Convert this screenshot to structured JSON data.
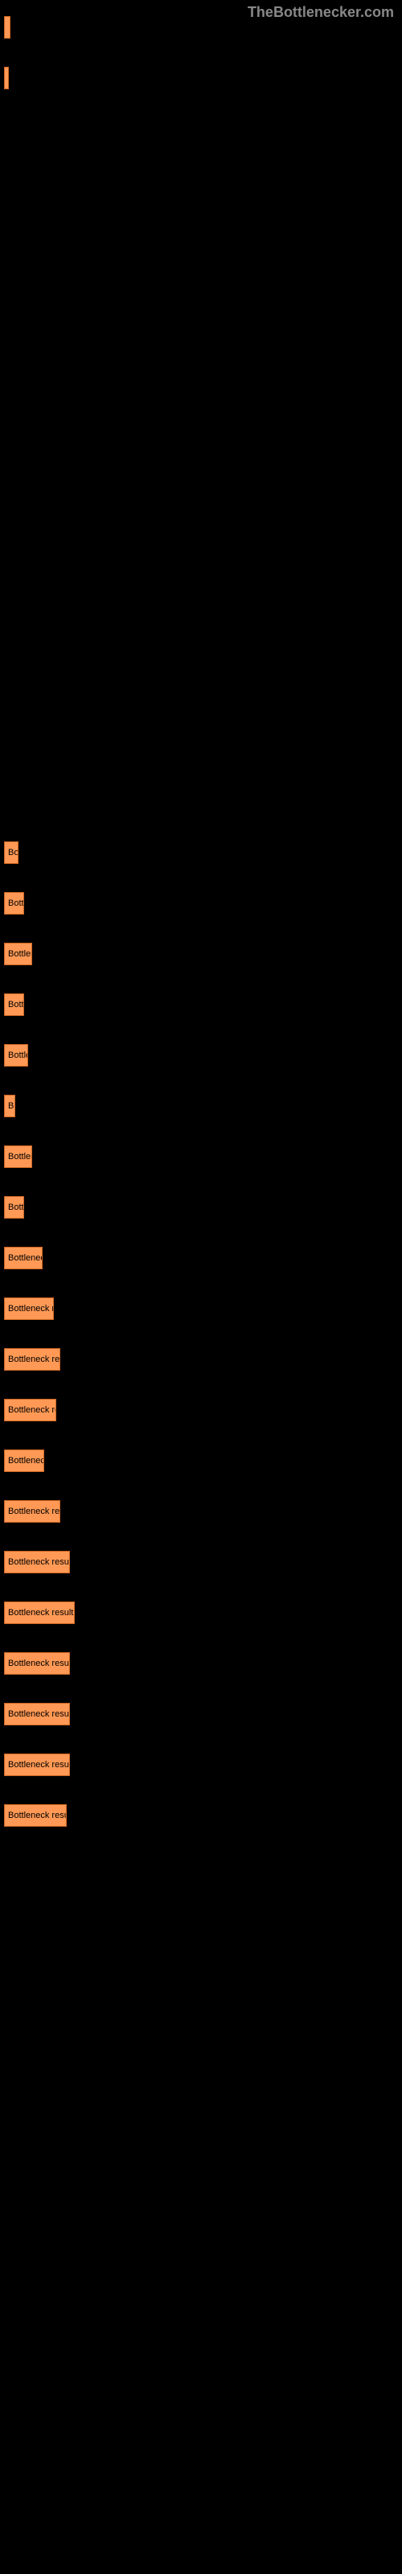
{
  "watermark": "TheBottlenecker.com",
  "chart": {
    "type": "bar",
    "background_color": "#000000",
    "bar_color": "#ff9955",
    "bar_border_color": "#cc6622",
    "text_color": "#000000",
    "font_size": 11,
    "bars": [
      {
        "width": 8,
        "label": ""
      },
      {
        "width": 4,
        "label": ""
      }
    ],
    "spacer_after_top": true,
    "main_bars": [
      {
        "width": 18,
        "label": "Bo"
      },
      {
        "width": 25,
        "label": "Bott"
      },
      {
        "width": 35,
        "label": "Bottlene"
      },
      {
        "width": 25,
        "label": "Bott"
      },
      {
        "width": 30,
        "label": "Bottle"
      },
      {
        "width": 14,
        "label": "B"
      },
      {
        "width": 35,
        "label": "Bottlene"
      },
      {
        "width": 25,
        "label": "Bottl"
      },
      {
        "width": 48,
        "label": "Bottleneck r"
      },
      {
        "width": 62,
        "label": "Bottleneck re"
      },
      {
        "width": 70,
        "label": "Bottleneck resu"
      },
      {
        "width": 65,
        "label": "Bottleneck res"
      },
      {
        "width": 50,
        "label": "Bottleneck"
      },
      {
        "width": 70,
        "label": "Bottleneck resu"
      },
      {
        "width": 82,
        "label": "Bottleneck result"
      },
      {
        "width": 88,
        "label": "Bottleneck results"
      },
      {
        "width": 82,
        "label": "Bottleneck result"
      },
      {
        "width": 82,
        "label": "Bottleneck result"
      },
      {
        "width": 82,
        "label": "Bottleneck result"
      },
      {
        "width": 78,
        "label": "Bottleneck resul"
      }
    ]
  }
}
